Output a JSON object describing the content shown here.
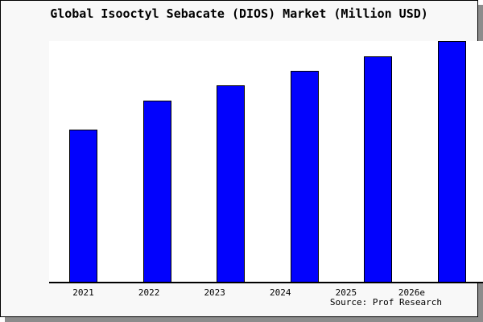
{
  "window": {
    "background_color": "#f8f8f8",
    "plot_background_color": "#ffffff",
    "frame_border_color": "#000000",
    "shadow_color": "#8c8c8c"
  },
  "chart_data": {
    "type": "bar",
    "title": "Global Isooctyl Sebacate (DIOS) Market (Million USD)",
    "categories": [
      "2021",
      "2022",
      "2023",
      "2024",
      "2025",
      "2026e"
    ],
    "values": [
      63.3,
      75.3,
      81.7,
      87.7,
      93.7,
      100
    ],
    "value_scale_note": "relative heights, normalized to 2026e = 100 (y-axis is unlabeled in the image)",
    "xlabel": "",
    "ylabel": "",
    "y_axis_labeled": false,
    "grid": false,
    "legend": false,
    "bar_color": "#0202fd",
    "bar_border_color": "#000000",
    "axis_color": "#000000"
  },
  "footer": {
    "source_note": "Source: Prof Research"
  }
}
